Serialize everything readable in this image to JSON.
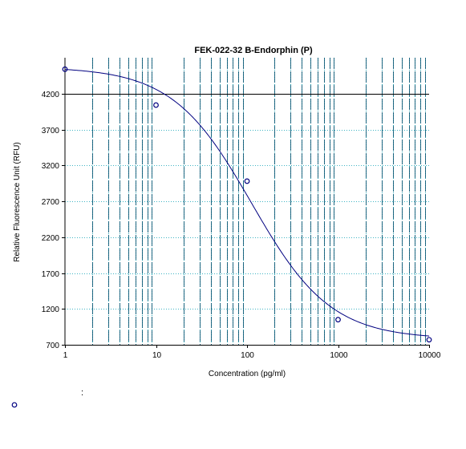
{
  "chart_data": {
    "type": "scatter",
    "title": "FEK-022-32  B-Endorphin (P)",
    "xlabel": "Concentration (pg/ml)",
    "ylabel": "Relative Fluorescence Unit (RFU)",
    "x_scale": "log",
    "xlim": [
      1,
      10000
    ],
    "ylim": [
      700,
      4700
    ],
    "x_ticks": [
      1,
      10,
      100,
      1000,
      10000
    ],
    "x_tick_labels": [
      "1",
      "10",
      "100",
      "1000",
      "10000"
    ],
    "y_ticks": [
      700,
      1200,
      1700,
      2200,
      2700,
      3200,
      3700,
      4200
    ],
    "y_tick_labels": [
      "700",
      "1200",
      "1700",
      "2200",
      "2700",
      "3200",
      "3700",
      "4200"
    ],
    "grid": true,
    "reference_line_y": 4200,
    "series": [
      {
        "points": [
          {
            "x": 1,
            "y": 4540
          },
          {
            "x": 10,
            "y": 4040
          },
          {
            "x": 100,
            "y": 2980
          },
          {
            "x": 1000,
            "y": 1050
          },
          {
            "x": 10000,
            "y": 770
          }
        ],
        "fit": "4PL",
        "fit_params": {
          "top": 4570,
          "bottom": 780,
          "ec50": 112,
          "hill": 1.0
        }
      }
    ],
    "legend": {
      "marker": "circle",
      "text": ":"
    },
    "colors": {
      "curve": "#000080",
      "marker": "#000080",
      "major_grid": "#00506e",
      "minor_grid": "#1fa8b8",
      "y_grid": "#3fb4c4",
      "reference_line": "#000000"
    }
  }
}
